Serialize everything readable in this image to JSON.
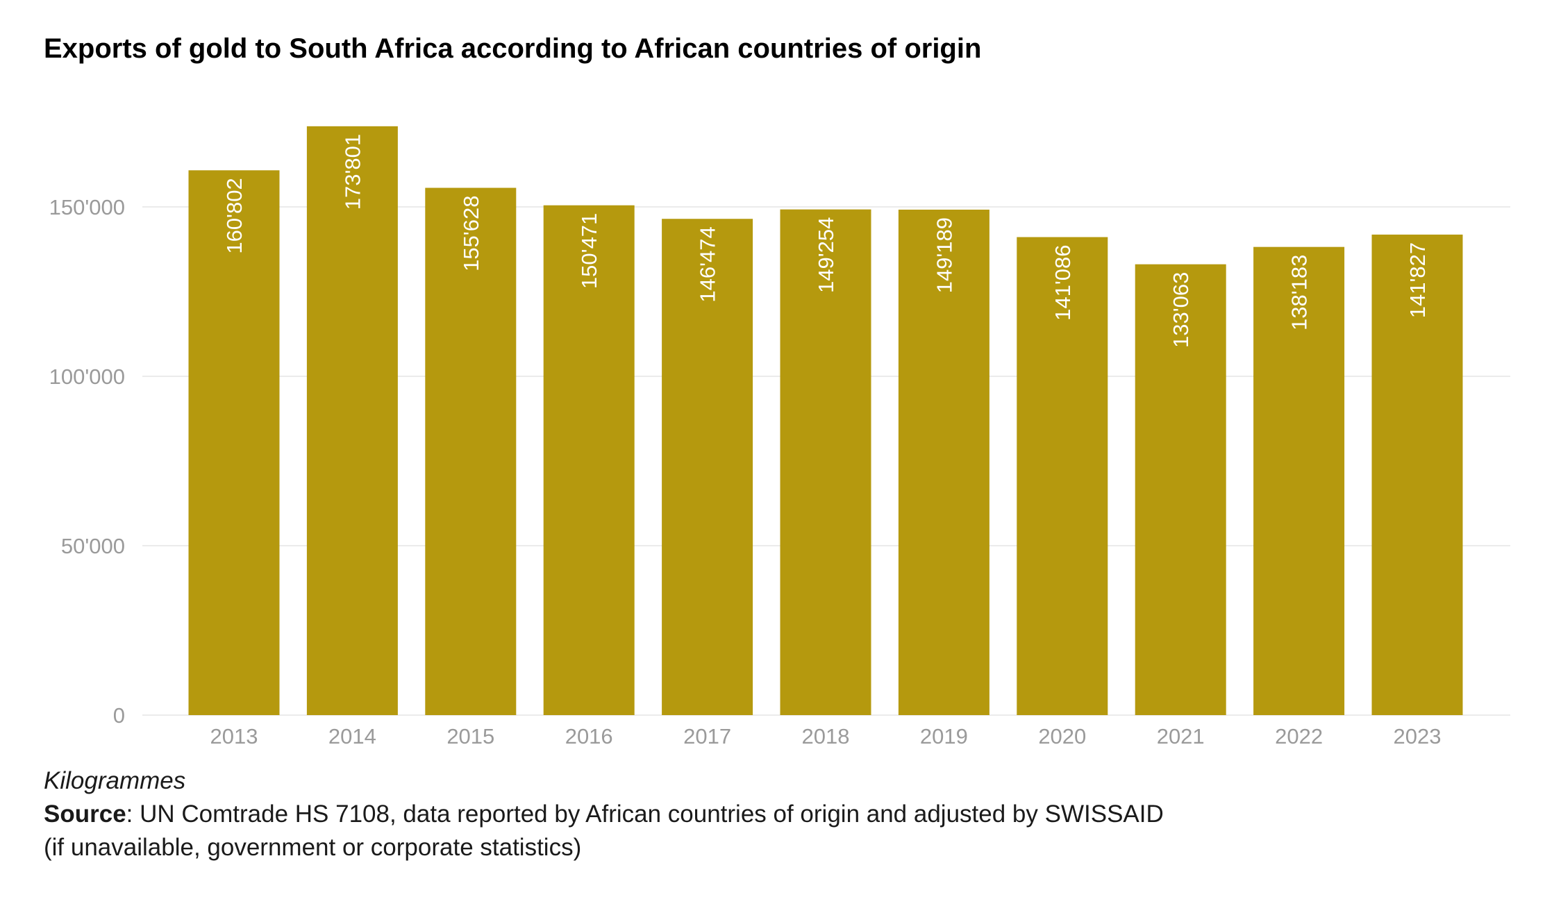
{
  "chart_data": {
    "type": "bar",
    "title": "Exports of gold to South Africa according to African countries of origin",
    "categories": [
      "2013",
      "2014",
      "2015",
      "2016",
      "2017",
      "2018",
      "2019",
      "2020",
      "2021",
      "2022",
      "2023"
    ],
    "values": [
      160802,
      173801,
      155628,
      150471,
      146474,
      149254,
      149189,
      141086,
      133063,
      138183,
      141827
    ],
    "value_labels": [
      "160'802",
      "173'801",
      "155'628",
      "150'471",
      "146'474",
      "149'254",
      "149'189",
      "141'086",
      "133'063",
      "138'183",
      "141'827"
    ],
    "yticks": [
      0,
      50000,
      100000,
      150000
    ],
    "ytick_labels": [
      "0",
      "50'000",
      "100'000",
      "150'000"
    ],
    "ylim": [
      0,
      180000
    ],
    "xlabel": "",
    "ylabel": "",
    "grid": true,
    "bar_color": "#B5990E"
  },
  "caption": {
    "unit": "Kilogrammes",
    "source_label": "Source",
    "source_text": ": UN Comtrade HS 7108, data reported by African countries of origin and adjusted by SWISSAID",
    "source_text_2": "(if unavailable, government or corporate statistics)"
  }
}
